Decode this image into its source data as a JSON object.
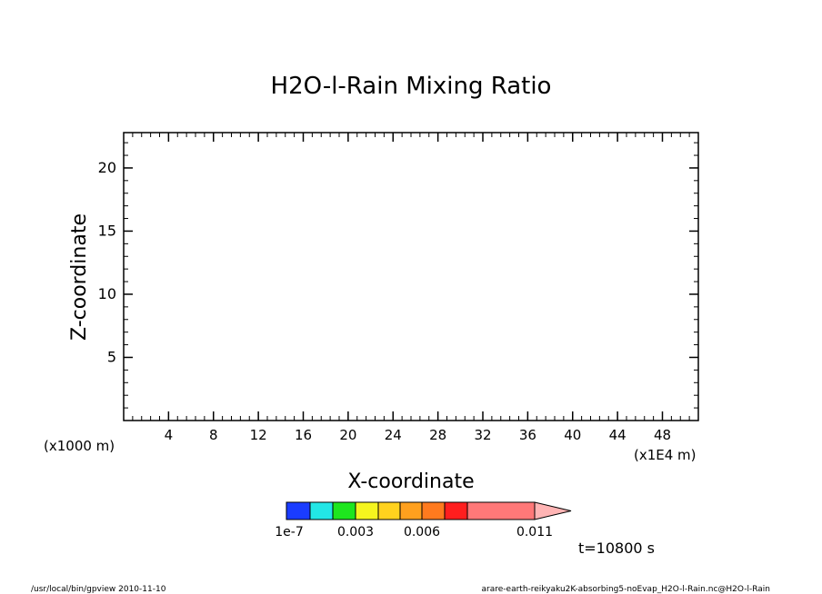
{
  "chart_data": {
    "type": "heatmap",
    "title": "H2O-l-Rain Mixing Ratio",
    "xlabel": "X-coordinate",
    "ylabel": "Z-coordinate",
    "x_unit": "(x1E4 m)",
    "y_unit": "(x1000 m)",
    "xlim": [
      0,
      51.2
    ],
    "ylim": [
      0,
      22.8
    ],
    "x_ticks": [
      4,
      8,
      12,
      16,
      20,
      24,
      28,
      32,
      36,
      40,
      44,
      48
    ],
    "y_ticks": [
      5,
      10,
      15,
      20
    ],
    "values": [],
    "colorbar": {
      "colors": [
        "#1a3cff",
        "#22e6e6",
        "#1ee61e",
        "#f5f51e",
        "#ffd21e",
        "#ffa01e",
        "#ff7a1e",
        "#ff1e1e",
        "#ff7878",
        "#ffb4b4"
      ],
      "labels": [
        "1e-7",
        "0.003",
        "0.006",
        "0.011"
      ]
    }
  },
  "time_label": "t=10800 s",
  "footer": {
    "left": "/usr/local/bin/gpview  2010-11-10",
    "right": "arare-earth-reikyaku2K-absorbing5-noEvap_H2O-l-Rain.nc@H2O-l-Rain"
  }
}
